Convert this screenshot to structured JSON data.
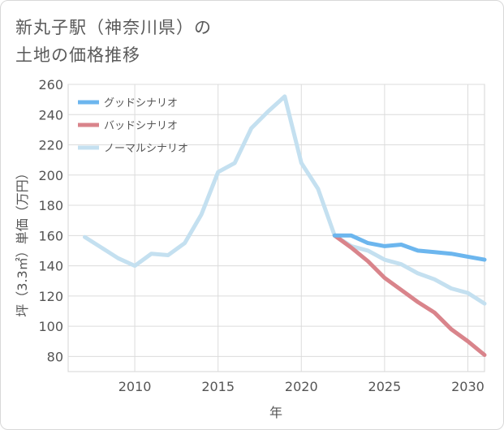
{
  "title_line1": "新丸子駅（神奈川県）の",
  "title_line2": "土地の価格推移",
  "chart_data": {
    "type": "line",
    "xlabel": "年",
    "ylabel": "坪（3.3㎡）単価（万円）",
    "xlim": [
      2006,
      2031
    ],
    "ylim": [
      70,
      260
    ],
    "x_ticks": [
      2010,
      2015,
      2020,
      2025,
      2030
    ],
    "y_ticks": [
      80,
      100,
      120,
      140,
      160,
      180,
      200,
      220,
      240,
      260
    ],
    "grid": true,
    "legend_position": "top-left",
    "series": [
      {
        "name": "グッドシナリオ",
        "color": "#6cb6ee",
        "x": [
          2022,
          2023,
          2024,
          2025,
          2026,
          2027,
          2028,
          2029,
          2030,
          2031
        ],
        "values": [
          160,
          160,
          155,
          153,
          154,
          150,
          149,
          148,
          146,
          144
        ]
      },
      {
        "name": "バッドシナリオ",
        "color": "#d9848b",
        "x": [
          2022,
          2023,
          2024,
          2025,
          2026,
          2027,
          2028,
          2029,
          2030,
          2031
        ],
        "values": [
          160,
          152,
          143,
          132,
          124,
          116,
          109,
          98,
          90,
          81
        ]
      },
      {
        "name": "ノーマルシナリオ",
        "color": "#c4e0f0",
        "x": [
          2007,
          2008,
          2009,
          2010,
          2011,
          2012,
          2013,
          2014,
          2015,
          2016,
          2017,
          2018,
          2019,
          2020,
          2021,
          2022,
          2023,
          2024,
          2025,
          2026,
          2027,
          2028,
          2029,
          2030,
          2031
        ],
        "values": [
          159,
          152,
          145,
          140,
          148,
          147,
          155,
          174,
          202,
          208,
          231,
          242,
          252,
          208,
          191,
          160,
          153,
          150,
          144,
          141,
          135,
          131,
          125,
          122,
          115
        ]
      }
    ]
  }
}
